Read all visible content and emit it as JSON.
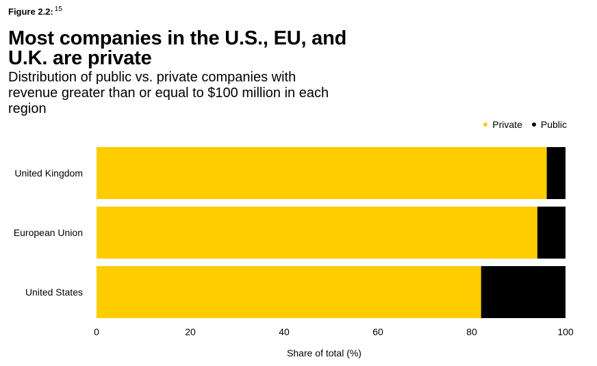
{
  "figure_label": "Figure 2.2:",
  "figure_footnote": "15",
  "chart_data": {
    "type": "bar",
    "orientation": "horizontal",
    "stacked": true,
    "title": "Most companies in the U.S., EU, and U.K. are private",
    "subtitle": "Distribution of public vs. private companies with revenue greater than or equal to $100 million in each region",
    "categories": [
      "United Kingdom",
      "European Union",
      "United States"
    ],
    "series": [
      {
        "name": "Private",
        "color": "#FFCC00",
        "values": [
          96,
          94,
          82
        ]
      },
      {
        "name": "Public",
        "color": "#000000",
        "values": [
          6,
          8,
          20
        ]
      }
    ],
    "xlabel": "Share of total (%)",
    "xlim": [
      0,
      100
    ],
    "xticks": [
      0,
      20,
      40,
      60,
      80,
      100
    ],
    "legend": "top-right",
    "grid": false
  }
}
